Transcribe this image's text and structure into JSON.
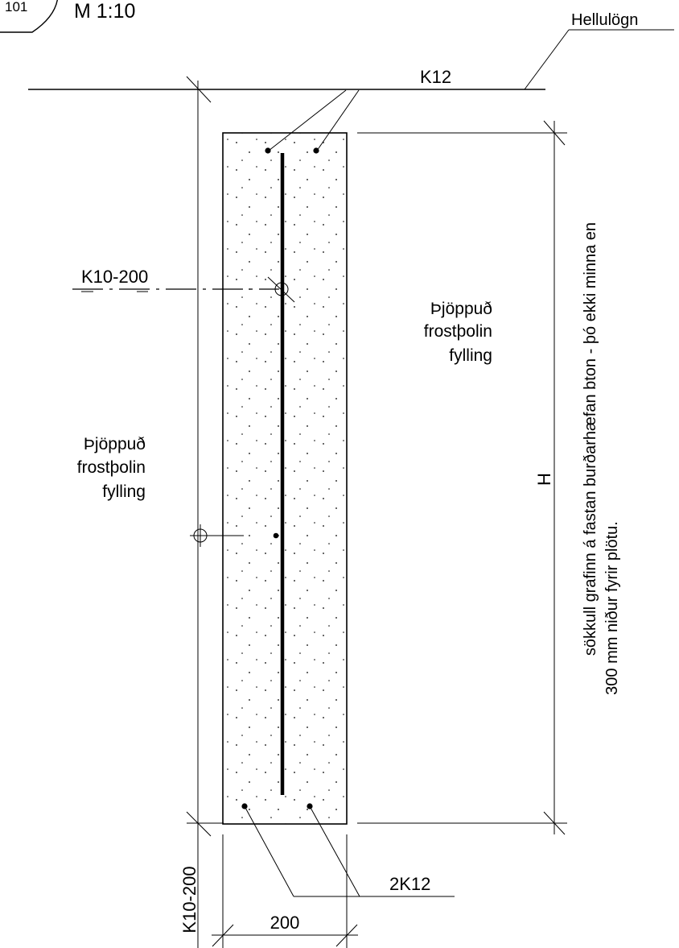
{
  "header": {
    "detail_number": "101",
    "scale": "M 1:10"
  },
  "labels": {
    "paving": "Hellulögn",
    "top_rebar": "K12",
    "stirrup_left": "K10-200",
    "fill_right": [
      "Þjöppuð",
      "frostþolin",
      "fylling"
    ],
    "fill_left": [
      "Þjöppuð",
      "frostþolin",
      "fylling"
    ],
    "height_symbol": "H",
    "depth_note": [
      "sökkull grafinn á fastan burðarhæfan bton - þó ekki minna en",
      "300 mm niður fyrir plötu."
    ],
    "bottom_rebar": "2K12",
    "stirrup_bottom": "K10-200",
    "width_dim": "200"
  }
}
